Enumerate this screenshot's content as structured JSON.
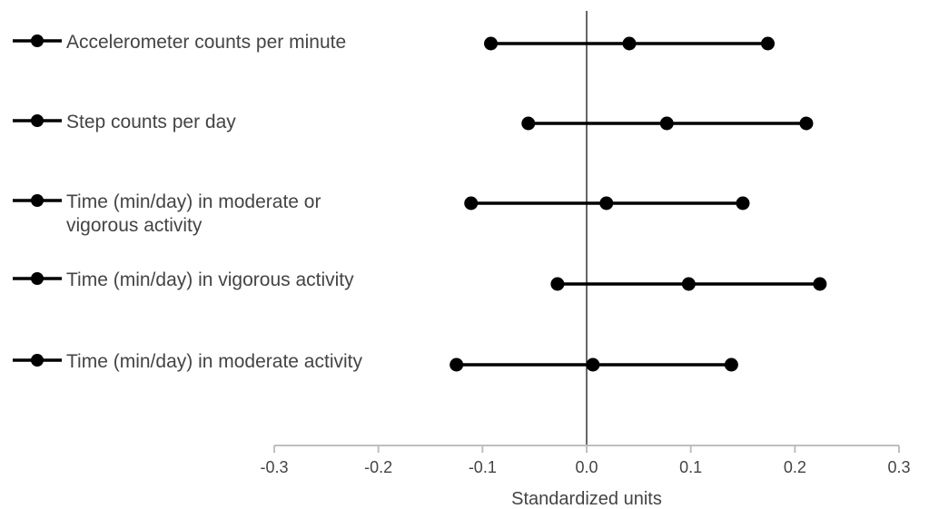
{
  "chart_data": {
    "type": "forest",
    "xlabel": "Standardized units",
    "xlim": [
      -0.3,
      0.3
    ],
    "xticks": [
      -0.3,
      -0.2,
      -0.1,
      0.0,
      0.1,
      0.2,
      0.3
    ],
    "xtick_labels": [
      "-0.3",
      "-0.2",
      "-0.1",
      "0.0",
      "0.1",
      "0.2",
      "0.3"
    ],
    "reference_line": 0.0,
    "grid": false,
    "legend_position": "left",
    "colors": {
      "series": "#000000",
      "axis": "#bfbfbf",
      "text": "#444444"
    },
    "series": [
      {
        "name": [
          "Accelerometer counts per minute"
        ],
        "lower": -0.092,
        "estimate": 0.041,
        "upper": 0.174
      },
      {
        "name": [
          "Step counts per day"
        ],
        "lower": -0.056,
        "estimate": 0.077,
        "upper": 0.211
      },
      {
        "name": [
          "Time (min/day) in moderate or",
          "vigorous activity"
        ],
        "lower": -0.111,
        "estimate": 0.019,
        "upper": 0.15
      },
      {
        "name": [
          "Time (min/day) in vigorous activity"
        ],
        "lower": -0.028,
        "estimate": 0.098,
        "upper": 0.224
      },
      {
        "name": [
          "Time (min/day) in moderate activity"
        ],
        "lower": -0.125,
        "estimate": 0.006,
        "upper": 0.139
      }
    ]
  }
}
